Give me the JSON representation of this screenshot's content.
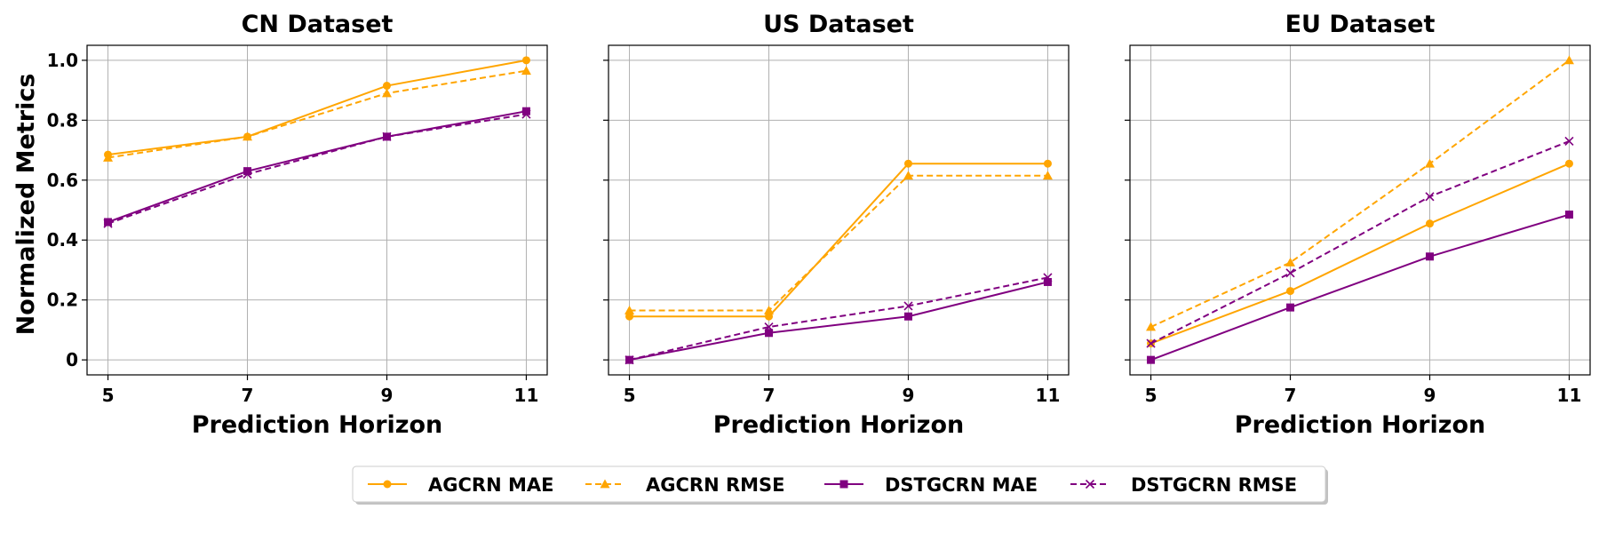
{
  "chart_data": {
    "type": "line",
    "ylabel": "Normalized Metrics",
    "x": [
      5,
      7,
      9,
      11
    ],
    "x_ticks": [
      "5",
      "7",
      "9",
      "11"
    ],
    "ylim": [
      -0.05,
      1.05
    ],
    "y_ticks": [
      "0",
      "0.2",
      "0.4",
      "0.6",
      "0.8",
      "1.0"
    ],
    "y_tick_values": [
      0,
      0.2,
      0.4,
      0.6,
      0.8,
      1.0
    ],
    "grid": true,
    "shared_y": true,
    "legend_position": "bottom-center",
    "colors": {
      "agcrn": "#FFA500",
      "dstgcrn": "#800080"
    },
    "panels": [
      {
        "title": "CN Dataset",
        "xlabel": "Prediction Horizon",
        "series": [
          {
            "name": "AGCRN MAE",
            "values": [
              0.685,
              0.745,
              0.915,
              1.0
            ]
          },
          {
            "name": "AGCRN RMSE",
            "values": [
              0.675,
              0.745,
              0.89,
              0.965
            ]
          },
          {
            "name": "DSTGCRN MAE",
            "values": [
              0.46,
              0.63,
              0.745,
              0.83
            ]
          },
          {
            "name": "DSTGCRN RMSE",
            "values": [
              0.455,
              0.62,
              0.745,
              0.82
            ]
          }
        ]
      },
      {
        "title": "US Dataset",
        "xlabel": "Prediction Horizon",
        "series": [
          {
            "name": "AGCRN MAE",
            "values": [
              0.145,
              0.145,
              0.655,
              0.655
            ]
          },
          {
            "name": "AGCRN RMSE",
            "values": [
              0.165,
              0.165,
              0.615,
              0.615
            ]
          },
          {
            "name": "DSTGCRN MAE",
            "values": [
              0.0,
              0.09,
              0.145,
              0.26
            ]
          },
          {
            "name": "DSTGCRN RMSE",
            "values": [
              0.0,
              0.11,
              0.18,
              0.275
            ]
          }
        ]
      },
      {
        "title": "EU Dataset",
        "xlabel": "Prediction Horizon",
        "series": [
          {
            "name": "AGCRN MAE",
            "values": [
              0.055,
              0.23,
              0.455,
              0.655
            ]
          },
          {
            "name": "AGCRN RMSE",
            "values": [
              0.11,
              0.325,
              0.655,
              1.0
            ]
          },
          {
            "name": "DSTGCRN MAE",
            "values": [
              0.0,
              0.175,
              0.345,
              0.485
            ]
          },
          {
            "name": "DSTGCRN RMSE",
            "values": [
              0.055,
              0.29,
              0.545,
              0.73
            ]
          }
        ]
      }
    ],
    "legend": [
      {
        "name": "AGCRN MAE",
        "color": "#FFA500",
        "marker": "circle",
        "dash": "solid"
      },
      {
        "name": "AGCRN RMSE",
        "color": "#FFA500",
        "marker": "triangle",
        "dash": "dashed"
      },
      {
        "name": "DSTGCRN MAE",
        "color": "#800080",
        "marker": "square",
        "dash": "solid"
      },
      {
        "name": "DSTGCRN RMSE",
        "color": "#800080",
        "marker": "x",
        "dash": "dashed"
      }
    ]
  }
}
